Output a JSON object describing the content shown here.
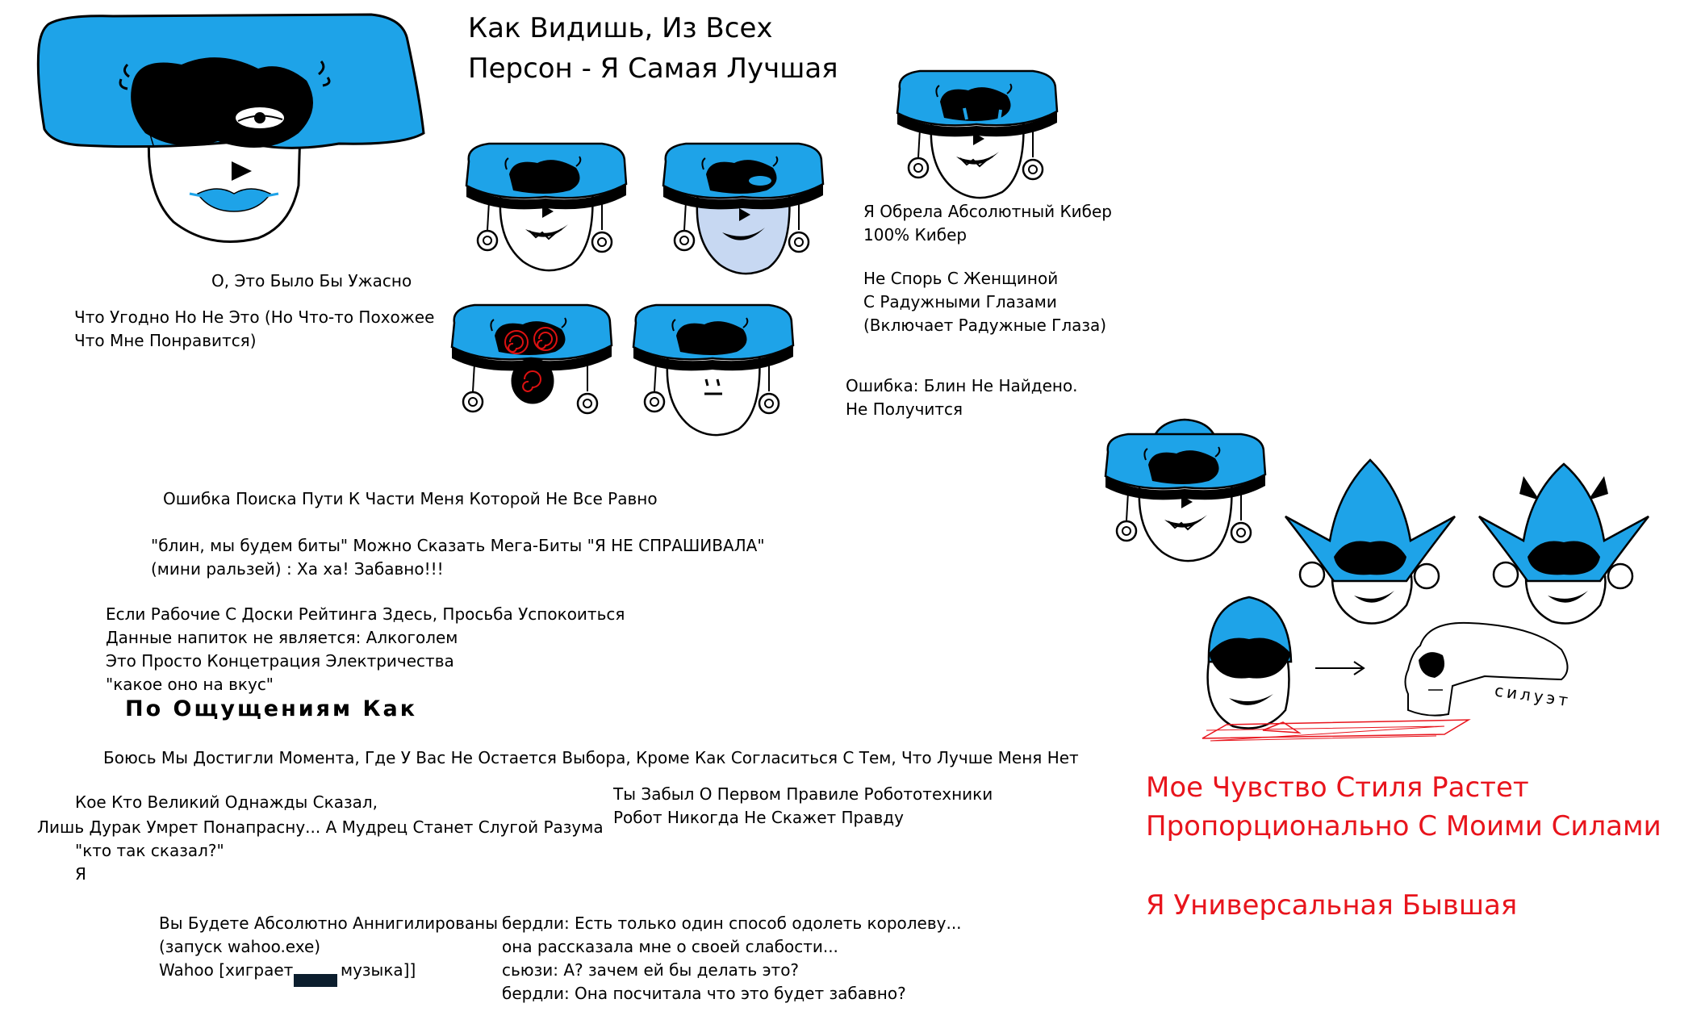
{
  "colors": {
    "hat": "#1ea3e8",
    "outline": "#000000",
    "red_text": "#e8141c",
    "pale_face": "#c7d8f2",
    "eye_red": "#d11"
  },
  "title": {
    "line1": "Как Видишь, Из Всех",
    "line2": "Персон - Я Самая Лучшая"
  },
  "captions": {
    "terrible": "О, Это Было Бы Ужасно",
    "anything_1": "Что Угодно Но Не Это (Но Что-то Похожее",
    "anything_2": "Что Мне Понравится)",
    "cyber_1": "Я Обрела Абсолютный Кибер",
    "cyber_2": "100% Кибер",
    "rainbow_1": "Не Спорь С Женщиной",
    "rainbow_2": "С Радужными Глазами",
    "rainbow_3": "(Включает Радужные Глаза)",
    "error_1": "Ошибка: Блин Не Найдено.",
    "error_2": "Не Получится",
    "pathfinding": "Ошибка Поиска Пути К Части Меня Которой Не Все Равно",
    "beaten_1": "\"блин, мы будем биты\" Можно Сказать Мега-Биты \"Я НЕ СПРАШИВАЛА\"",
    "beaten_2": "(мини ральзей) : Ха ха! Забавно!!!",
    "leaderboard_1": "Если Рабочие С Доски Рейтинга Здесь, Просьба Успокоиться",
    "leaderboard_2": "Данные напиток не является: Алкоголем",
    "leaderboard_3": "Это Просто Концетрация Электричества",
    "leaderboard_4": "\"какое оно на вкус\"",
    "feels_like": "По Ощущениям Как",
    "moment": "Боюсь Мы Достигли Момента, Где У Вас Не Остается Выбора, Кроме Как Согласиться С Тем, Что Лучше Меня Нет",
    "wise_1": "Кое Кто Великий Однажды Сказал,",
    "wise_2": "Лишь Дурак Умрет Понапрасну... А Мудрец Станет Слугой Разума",
    "wise_3": "\"кто так сказал?\"",
    "wise_4": "Я",
    "robot_1": "Ты Забыл О Первом Правиле Робототехники",
    "robot_2": "Робот Никогда Не Скажет Правду",
    "annihilated_1": "Вы Будете Абсолютно Аннигилированы",
    "annihilated_2": "(запуск wahoo.exe)",
    "annihilated_3a": "Wahoo [хиграет",
    "annihilated_3b": "музыка]]",
    "berdly_1": "бердли: Есть только один способ одолеть королеву...",
    "berdly_2": "она рассказала мне о своей слабости...",
    "berdly_3": "сьюзи: А? зачем ей бы делать это?",
    "berdly_4": "бердли: Она посчитала что это будет забавно?",
    "silhouette": "силуэт",
    "style_1": "Мое Чувство Стиля Растет",
    "style_2": "Пропорционально С Моими Силами",
    "former": "Я Универсальная Бывшая"
  }
}
